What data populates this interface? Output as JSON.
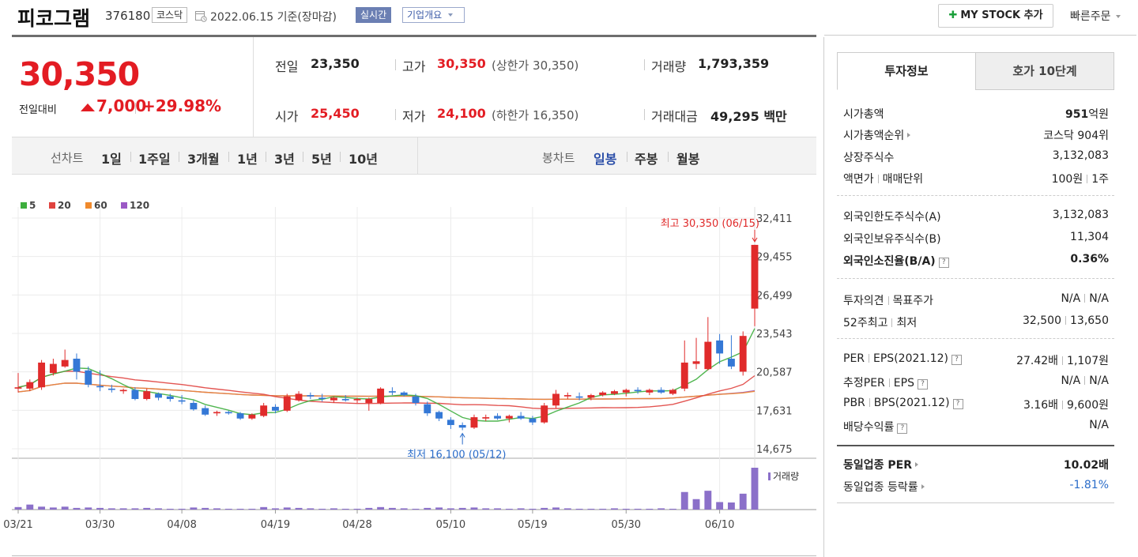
{
  "header": {
    "stock_name": "피코그램",
    "stock_code": "376180",
    "market_tag": "코스닥",
    "date_text": "2022.06.15 기준(장마감)",
    "realtime_tag": "실시간",
    "company_tag": "기업개요",
    "mystock_label": "MY STOCK 추가",
    "quick_order_label": "빠른주문"
  },
  "price": {
    "current": "30,350",
    "change_label": "전일대비",
    "change": "7,000",
    "change_pct": "+29.98%"
  },
  "stats": {
    "prev_label": "전일",
    "prev": "23,350",
    "high_label": "고가",
    "high": "30,350",
    "upper_limit": "(상한가 30,350)",
    "volume_label": "거래량",
    "volume": "1,793,359",
    "open_label": "시가",
    "open": "25,450",
    "low_label": "저가",
    "low": "24,100",
    "lower_limit": "(하한가 16,350)",
    "amount_label": "거래대금",
    "amount": "49,295",
    "amount_unit": "백만"
  },
  "periods": {
    "line_label": "선차트",
    "line_items": [
      "1일",
      "1주일",
      "3개월",
      "1년",
      "3년",
      "5년",
      "10년"
    ],
    "candle_label": "봉차트",
    "candle_items": [
      "일봉",
      "주봉",
      "월봉"
    ],
    "selected_candle": "일봉"
  },
  "legend": [
    {
      "label": "5",
      "color": "#3dae3d"
    },
    {
      "label": "20",
      "color": "#e0433f"
    },
    {
      "label": "60",
      "color": "#f08a2c"
    },
    {
      "label": "120",
      "color": "#9b59c5"
    }
  ],
  "chart_data": {
    "type": "candlestick",
    "y_ticks": [
      "32,411",
      "29,455",
      "26,499",
      "23,543",
      "20,587",
      "17,631",
      "14,675"
    ],
    "ylim": [
      14675,
      32411
    ],
    "x_ticks": [
      "03/21",
      "03/30",
      "04/08",
      "04/19",
      "04/28",
      "05/10",
      "05/19",
      "05/30",
      "06/10"
    ],
    "high_annotation": "최고 30,350 (06/15)",
    "low_annotation": "최저 16,100 (05/12)",
    "volume_label": "거래량",
    "up_color": "#e02b2b",
    "down_color": "#3478d6",
    "candles": [
      {
        "o": 19300,
        "h": 20500,
        "l": 19000,
        "c": 19400
      },
      {
        "o": 19300,
        "h": 20000,
        "l": 19100,
        "c": 19800
      },
      {
        "o": 19400,
        "h": 21500,
        "l": 19200,
        "c": 21300
      },
      {
        "o": 20500,
        "h": 21600,
        "l": 20300,
        "c": 21200
      },
      {
        "o": 21000,
        "h": 22300,
        "l": 20900,
        "c": 21500
      },
      {
        "o": 21600,
        "h": 22000,
        "l": 20000,
        "c": 20600
      },
      {
        "o": 20700,
        "h": 21000,
        "l": 19400,
        "c": 19600
      },
      {
        "o": 19500,
        "h": 20700,
        "l": 19100,
        "c": 19400
      },
      {
        "o": 19300,
        "h": 19600,
        "l": 19000,
        "c": 19200
      },
      {
        "o": 19100,
        "h": 19300,
        "l": 18900,
        "c": 19200
      },
      {
        "o": 19200,
        "h": 19400,
        "l": 18400,
        "c": 18500
      },
      {
        "o": 18500,
        "h": 19300,
        "l": 18400,
        "c": 19100
      },
      {
        "o": 18900,
        "h": 19000,
        "l": 18400,
        "c": 18600
      },
      {
        "o": 18700,
        "h": 18900,
        "l": 18300,
        "c": 18500
      },
      {
        "o": 18400,
        "h": 18800,
        "l": 18100,
        "c": 18300
      },
      {
        "o": 18200,
        "h": 18400,
        "l": 17600,
        "c": 17700
      },
      {
        "o": 17800,
        "h": 18000,
        "l": 17200,
        "c": 17300
      },
      {
        "o": 17400,
        "h": 17600,
        "l": 17200,
        "c": 17500
      },
      {
        "o": 17500,
        "h": 17600,
        "l": 17300,
        "c": 17400
      },
      {
        "o": 17400,
        "h": 17500,
        "l": 16900,
        "c": 17000
      },
      {
        "o": 17000,
        "h": 17400,
        "l": 16900,
        "c": 17300
      },
      {
        "o": 17200,
        "h": 18200,
        "l": 17100,
        "c": 18000
      },
      {
        "o": 17900,
        "h": 18100,
        "l": 17400,
        "c": 17600
      },
      {
        "o": 17600,
        "h": 18900,
        "l": 17500,
        "c": 18700
      },
      {
        "o": 18400,
        "h": 19100,
        "l": 18300,
        "c": 18900
      },
      {
        "o": 18800,
        "h": 19000,
        "l": 18500,
        "c": 18700
      },
      {
        "o": 18600,
        "h": 18900,
        "l": 18300,
        "c": 18500
      },
      {
        "o": 18400,
        "h": 18700,
        "l": 18200,
        "c": 18600
      },
      {
        "o": 18500,
        "h": 18800,
        "l": 18300,
        "c": 18400
      },
      {
        "o": 18400,
        "h": 18600,
        "l": 18200,
        "c": 18500
      },
      {
        "o": 18200,
        "h": 18600,
        "l": 17600,
        "c": 18500
      },
      {
        "o": 18200,
        "h": 19400,
        "l": 18100,
        "c": 19300
      },
      {
        "o": 19100,
        "h": 19400,
        "l": 18800,
        "c": 19000
      },
      {
        "o": 19000,
        "h": 19100,
        "l": 18700,
        "c": 18800
      },
      {
        "o": 18700,
        "h": 18900,
        "l": 18000,
        "c": 18200
      },
      {
        "o": 18100,
        "h": 18300,
        "l": 17200,
        "c": 17400
      },
      {
        "o": 17500,
        "h": 17600,
        "l": 16800,
        "c": 17000
      },
      {
        "o": 16900,
        "h": 17100,
        "l": 16200,
        "c": 16500
      },
      {
        "o": 16500,
        "h": 16700,
        "l": 16100,
        "c": 16300
      },
      {
        "o": 16300,
        "h": 17300,
        "l": 16200,
        "c": 17100
      },
      {
        "o": 17000,
        "h": 17300,
        "l": 16800,
        "c": 17100
      },
      {
        "o": 17200,
        "h": 17400,
        "l": 16900,
        "c": 17000
      },
      {
        "o": 17000,
        "h": 17300,
        "l": 16700,
        "c": 17200
      },
      {
        "o": 17200,
        "h": 17500,
        "l": 16900,
        "c": 17000
      },
      {
        "o": 17000,
        "h": 17200,
        "l": 16500,
        "c": 16700
      },
      {
        "o": 16700,
        "h": 18200,
        "l": 16600,
        "c": 18000
      },
      {
        "o": 18000,
        "h": 19200,
        "l": 17800,
        "c": 18900
      },
      {
        "o": 18700,
        "h": 19000,
        "l": 18500,
        "c": 18800
      },
      {
        "o": 18700,
        "h": 19000,
        "l": 18400,
        "c": 18600
      },
      {
        "o": 18600,
        "h": 18900,
        "l": 18400,
        "c": 18800
      },
      {
        "o": 18800,
        "h": 19100,
        "l": 18700,
        "c": 19000
      },
      {
        "o": 18900,
        "h": 19200,
        "l": 18800,
        "c": 19100
      },
      {
        "o": 19000,
        "h": 19300,
        "l": 18700,
        "c": 19200
      },
      {
        "o": 19200,
        "h": 19400,
        "l": 18900,
        "c": 19100
      },
      {
        "o": 19000,
        "h": 19300,
        "l": 18800,
        "c": 19200
      },
      {
        "o": 19200,
        "h": 19400,
        "l": 18900,
        "c": 19000
      },
      {
        "o": 18900,
        "h": 19300,
        "l": 18800,
        "c": 19200
      },
      {
        "o": 19300,
        "h": 23000,
        "l": 19100,
        "c": 21300
      },
      {
        "o": 21200,
        "h": 23200,
        "l": 20800,
        "c": 21400
      },
      {
        "o": 20800,
        "h": 24800,
        "l": 20700,
        "c": 22900
      },
      {
        "o": 23000,
        "h": 23500,
        "l": 21200,
        "c": 22000
      },
      {
        "o": 21600,
        "h": 23400,
        "l": 20800,
        "c": 21000
      },
      {
        "o": 20600,
        "h": 23700,
        "l": 20300,
        "c": 23350
      },
      {
        "o": 25450,
        "h": 30350,
        "l": 24100,
        "c": 30350
      }
    ],
    "volumes": [
      0.06,
      0.12,
      0.07,
      0.05,
      0.07,
      0.04,
      0.05,
      0.04,
      0.03,
      0.03,
      0.03,
      0.04,
      0.03,
      0.02,
      0.02,
      0.05,
      0.04,
      0.03,
      0.02,
      0.02,
      0.02,
      0.06,
      0.03,
      0.05,
      0.04,
      0.03,
      0.02,
      0.03,
      0.02,
      0.02,
      0.04,
      0.06,
      0.04,
      0.03,
      0.02,
      0.04,
      0.05,
      0.03,
      0.04,
      0.05,
      0.03,
      0.03,
      0.02,
      0.03,
      0.02,
      0.04,
      0.05,
      0.03,
      0.02,
      0.02,
      0.02,
      0.03,
      0.02,
      0.02,
      0.02,
      0.03,
      0.02,
      0.42,
      0.25,
      0.45,
      0.18,
      0.17,
      0.38,
      1.0
    ]
  },
  "tabs": {
    "active": "투자정보",
    "inactive": "호가 10단계"
  },
  "info": {
    "market_cap_label": "시가총액",
    "market_cap_num": "951",
    "market_cap_unit": "억원",
    "market_rank_label": "시가총액순위",
    "market_rank": "코스닥 904위",
    "shares_label": "상장주식수",
    "shares": "3,132,083",
    "par_label": "액면가",
    "unit_label": "매매단위",
    "par": "100원",
    "unit": "1주",
    "foreign_limit_label": "외국인한도주식수(A)",
    "foreign_limit": "3,132,083",
    "foreign_hold_label": "외국인보유주식수(B)",
    "foreign_hold": "11,304",
    "foreign_ratio_label": "외국인소진율(B/A)",
    "foreign_ratio": "0.36%",
    "opinion_label": "투자의견",
    "target_label": "목표주가",
    "opinion": "N/A",
    "target": "N/A",
    "w52_high_label": "52주최고",
    "w52_low_label": "최저",
    "w52_high": "32,500",
    "w52_low": "13,650",
    "per_label": "PER",
    "eps_label": "EPS",
    "eps_year": "(2021.12)",
    "per": "27.42배",
    "eps": "1,107원",
    "est_per_label": "추정PER",
    "est_eps_label": "EPS",
    "est_per": "N/A",
    "est_eps": "N/A",
    "pbr_label": "PBR",
    "bps_label": "BPS",
    "bps_year": "(2021.12)",
    "pbr": "3.16배",
    "bps": "9,600원",
    "dividend_label": "배당수익률",
    "dividend": "N/A",
    "industry_per_label": "동일업종 PER",
    "industry_per": "10.02배",
    "industry_change_label": "동일업종 등락률",
    "industry_change": "-1.81%"
  }
}
